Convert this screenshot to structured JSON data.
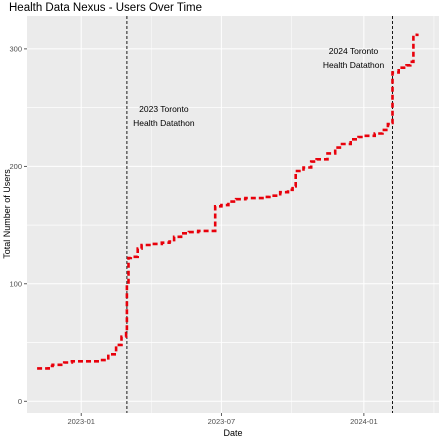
{
  "chart_data": {
    "type": "line",
    "title": "Health Data Nexus - Users Over Time",
    "xlabel": "Date",
    "ylabel": "Total Number of Users",
    "x_ticks": [
      "2023-01",
      "2023-07",
      "2024-01"
    ],
    "y_ticks": [
      0,
      100,
      200,
      300
    ],
    "ylim": [
      -10,
      328
    ],
    "xlim": [
      "2022-10-23",
      "2024-04-07"
    ],
    "grid": true,
    "line_color": "#e8000b",
    "line_style": "dashed",
    "series": [
      {
        "x": [
          "2022-11-05",
          "2022-11-15",
          "2022-11-20",
          "2022-11-25",
          "2022-12-10",
          "2022-12-20",
          "2023-01-05",
          "2023-01-15",
          "2023-01-25",
          "2023-02-05",
          "2023-02-15",
          "2023-02-22",
          "2023-02-28",
          "2023-03-01",
          "2023-03-03",
          "2023-03-06",
          "2023-03-15",
          "2023-03-20",
          "2023-04-01",
          "2023-04-15",
          "2023-04-25",
          "2023-05-01",
          "2023-05-10",
          "2023-05-20",
          "2023-06-01",
          "2023-06-10",
          "2023-06-20",
          "2023-06-23",
          "2023-07-01",
          "2023-07-10",
          "2023-07-20",
          "2023-08-01",
          "2023-08-15",
          "2023-08-25",
          "2023-09-01",
          "2023-09-15",
          "2023-09-25",
          "2023-10-01",
          "2023-10-05",
          "2023-10-15",
          "2023-10-25",
          "2023-11-01",
          "2023-11-15",
          "2023-11-25",
          "2023-12-01",
          "2023-12-15",
          "2023-12-25",
          "2024-01-01",
          "2024-01-15",
          "2024-01-25",
          "2024-02-01",
          "2024-02-05",
          "2024-02-07",
          "2024-02-15",
          "2024-02-25",
          "2024-03-01",
          "2024-03-05",
          "2024-03-10"
        ],
        "values": [
          28,
          28,
          30,
          31,
          33,
          34,
          34,
          34,
          35,
          40,
          48,
          55,
          58,
          100,
          122,
          123,
          130,
          133,
          134,
          135,
          136,
          140,
          143,
          144,
          145,
          145,
          145,
          166,
          167,
          170,
          172,
          173,
          173,
          174,
          175,
          178,
          180,
          183,
          196,
          199,
          204,
          206,
          211,
          216,
          219,
          223,
          225,
          226,
          228,
          231,
          236,
          237,
          280,
          284,
          286,
          289,
          312,
          313
        ]
      }
    ],
    "annotations": [
      {
        "date": "2023-03-01",
        "line1": "2023 Toronto",
        "line2": "Health Datathon"
      },
      {
        "date": "2024-02-07",
        "line1": "2024 Toronto",
        "line2": "Health Datathon"
      }
    ]
  }
}
